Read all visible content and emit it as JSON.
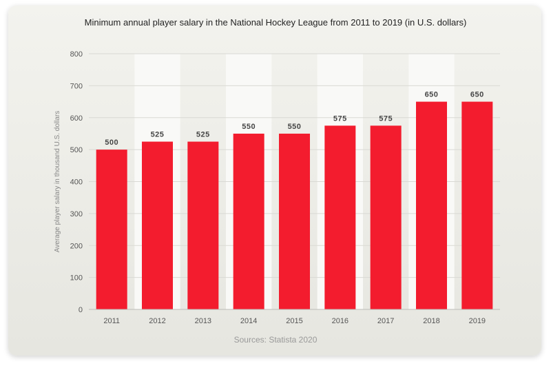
{
  "chart_data": {
    "type": "bar",
    "title": "Minimum annual player salary in the National Hockey League from 2011 to 2019 (in U.S. dollars)",
    "xlabel": "",
    "ylabel": "Average player salary in thousand U.S. dollars",
    "categories": [
      "2011",
      "2012",
      "2013",
      "2014",
      "2015",
      "2016",
      "2017",
      "2018",
      "2019"
    ],
    "values": [
      500,
      525,
      525,
      550,
      550,
      575,
      575,
      650,
      650
    ],
    "ylim": [
      0,
      800
    ],
    "yticks": [
      0,
      100,
      200,
      300,
      400,
      500,
      600,
      700,
      800
    ],
    "grid": true,
    "legend": "none",
    "bar_color": "#f31c2e",
    "source": "Sources: Statista 2020"
  }
}
